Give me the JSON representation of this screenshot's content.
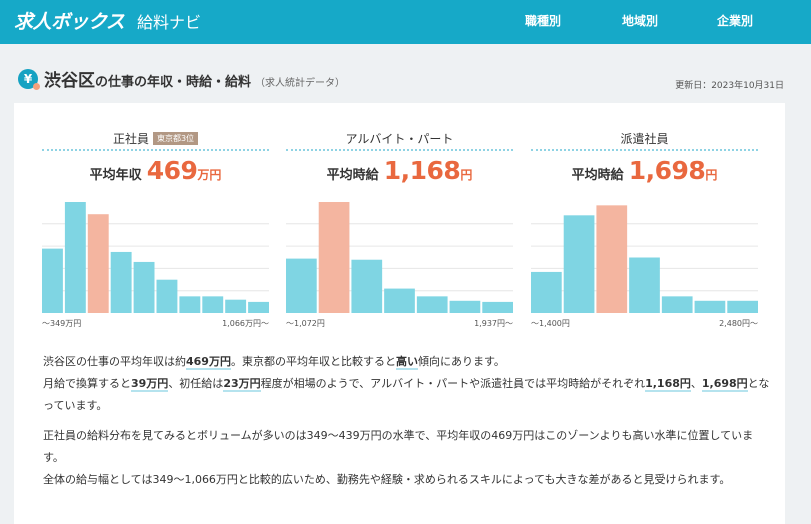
{
  "header": {
    "logo": "求人ボックス",
    "logo_sub": "給料ナビ",
    "nav": [
      "職種別",
      "地域別",
      "企業別"
    ],
    "brand_color": "#16a9c8"
  },
  "title": {
    "icon": "yen-icon",
    "place": "渋谷区",
    "text": "の仕事の年収・時給・給料",
    "sub": "（求人統計データ）",
    "updated": "更新日：2023年10月31日"
  },
  "panels": [
    {
      "name": "正社員",
      "badge": "東京都3位",
      "avg_label": "平均年収",
      "avg_value": "469",
      "avg_unit": "万円",
      "min_label": "〜349万円",
      "max_label": "1,066万円〜"
    },
    {
      "name": "アルバイト・パート",
      "avg_label": "平均時給",
      "avg_value": "1,168",
      "avg_unit": "円",
      "min_label": "〜1,072円",
      "max_label": "1,937円〜"
    },
    {
      "name": "派遣社員",
      "avg_label": "平均時給",
      "avg_value": "1,698",
      "avg_unit": "円",
      "min_label": "〜1,400円",
      "max_label": "2,480円〜"
    }
  ],
  "chart_data": [
    {
      "type": "bar",
      "categories": [
        "1",
        "2",
        "3",
        "4",
        "5",
        "6",
        "7",
        "8",
        "9",
        "10"
      ],
      "values": [
        58,
        100,
        89,
        55,
        46,
        30,
        15,
        15,
        12,
        10
      ],
      "highlight_index": 2,
      "bar_color": "#7fd5e3",
      "highlight_color": "#f4b5a0",
      "ylim": [
        0,
        100
      ],
      "xlabel_min": "〜349万円",
      "xlabel_max": "1,066万円〜"
    },
    {
      "type": "bar",
      "categories": [
        "1",
        "2",
        "3",
        "4",
        "5",
        "6",
        "7"
      ],
      "values": [
        49,
        100,
        48,
        22,
        15,
        11,
        10
      ],
      "highlight_index": 1,
      "bar_color": "#7fd5e3",
      "highlight_color": "#f4b5a0",
      "ylim": [
        0,
        100
      ],
      "xlabel_min": "〜1,072円",
      "xlabel_max": "1,937円〜"
    },
    {
      "type": "bar",
      "categories": [
        "1",
        "2",
        "3",
        "4",
        "5",
        "6",
        "7"
      ],
      "values": [
        37,
        88,
        97,
        50,
        15,
        11,
        11
      ],
      "highlight_index": 2,
      "bar_color": "#7fd5e3",
      "highlight_color": "#f4b5a0",
      "ylim": [
        0,
        100
      ],
      "xlabel_min": "〜1,400円",
      "xlabel_max": "2,480円〜"
    }
  ],
  "description": {
    "p1": [
      {
        "t": "渋谷区の仕事の平均年収は約"
      },
      {
        "t": "469万円",
        "hl": true
      },
      {
        "t": "。東京都の平均年収と比較すると"
      },
      {
        "t": "高い",
        "hl": true
      },
      {
        "t": "傾向にあります。"
      },
      {
        "br": true
      },
      {
        "t": "月給で換算すると"
      },
      {
        "t": "39万円",
        "hl": true
      },
      {
        "t": "、初任給は"
      },
      {
        "t": "23万円",
        "hl": true
      },
      {
        "t": "程度が相場のようで、アルバイト・パートや派遣社員では平均時給がそれぞれ"
      },
      {
        "t": "1,168円",
        "hl": true
      },
      {
        "t": "、"
      },
      {
        "t": "1,698円",
        "hl": true
      },
      {
        "t": "となっています。"
      }
    ],
    "p2": [
      {
        "t": "正社員の給料分布を見てみるとボリュームが多いのは349〜439万円の水準で、平均年収の469万円はこのゾーンよりも高い水準に位置しています。"
      },
      {
        "br": true
      },
      {
        "t": "全体の給与幅としては349〜1,066万円と比較的広いため、勤務先や経験・求められるスキルによっても大きな差があると見受けられます。"
      }
    ]
  }
}
